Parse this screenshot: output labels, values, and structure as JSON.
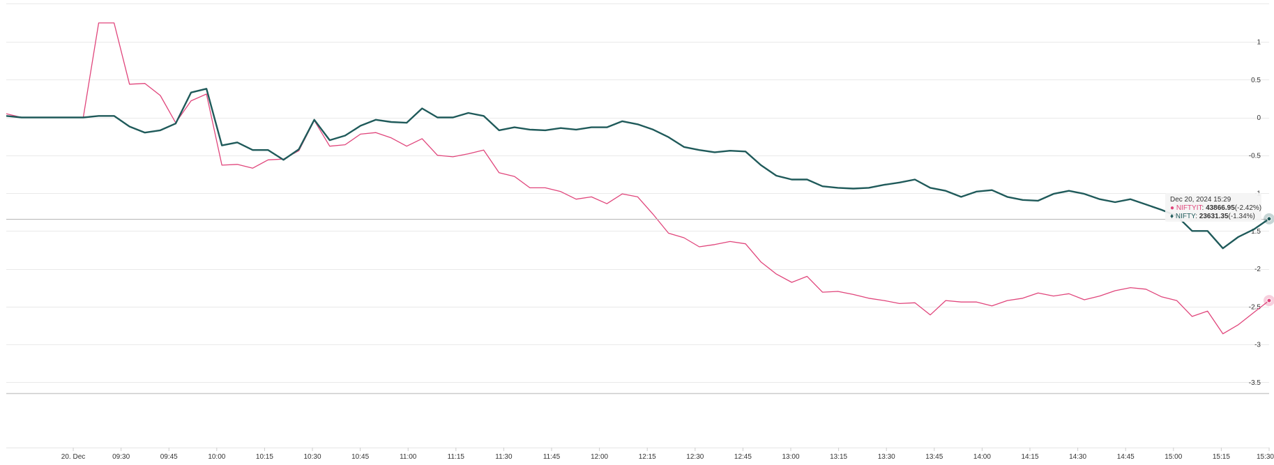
{
  "chart_data": {
    "type": "line",
    "ylim": [
      -3.8,
      1.5
    ],
    "y_ticks": [
      "1",
      "0.5",
      "0",
      "-0.5",
      "-1",
      "-1.5",
      "-2",
      "-2.5",
      "-3",
      "-3.5"
    ],
    "y_tick_values": [
      1,
      0.5,
      0,
      -0.5,
      -1,
      -1.5,
      -2,
      -2.5,
      -3,
      -3.5
    ],
    "x_ticks": [
      "20. Dec",
      "09:30",
      "09:45",
      "10:00",
      "10:15",
      "10:30",
      "10:45",
      "11:00",
      "11:15",
      "11:30",
      "11:45",
      "12:00",
      "12:15",
      "12:30",
      "12:45",
      "13:00",
      "13:15",
      "13:30",
      "13:45",
      "14:00",
      "14:15",
      "14:30",
      "14:45",
      "15:00",
      "15:15",
      "15:30"
    ],
    "x_tick_minutes": [
      555,
      570,
      585,
      600,
      615,
      630,
      645,
      660,
      675,
      690,
      705,
      720,
      735,
      750,
      765,
      780,
      795,
      810,
      825,
      840,
      855,
      870,
      885,
      900,
      915,
      930
    ],
    "x_start_minutes": 534,
    "x_end_minutes": 930,
    "grid": true,
    "crosshair_value": -1.34,
    "series": [
      {
        "name": "NIFTYIT",
        "color": "#e0457b",
        "values": [
          0.05,
          0,
          0,
          0,
          0,
          0,
          1.25,
          1.25,
          0.44,
          0.45,
          0.29,
          -0.07,
          0.22,
          0.31,
          -0.63,
          -0.62,
          -0.67,
          -0.56,
          -0.55,
          -0.44,
          -0.04,
          -0.38,
          -0.36,
          -0.22,
          -0.2,
          -0.27,
          -0.38,
          -0.28,
          -0.5,
          -0.52,
          -0.48,
          -0.43,
          -0.73,
          -0.78,
          -0.93,
          -0.93,
          -0.98,
          -1.08,
          -1.05,
          -1.14,
          -1.01,
          -1.05,
          -1.28,
          -1.53,
          -1.59,
          -1.71,
          -1.68,
          -1.64,
          -1.67,
          -1.91,
          -2.07,
          -2.18,
          -2.1,
          -2.31,
          -2.3,
          -2.34,
          -2.39,
          -2.42,
          -2.46,
          -2.45,
          -2.61,
          -2.42,
          -2.44,
          -2.44,
          -2.49,
          -2.42,
          -2.39,
          -2.32,
          -2.36,
          -2.33,
          -2.41,
          -2.36,
          -2.29,
          -2.25,
          -2.27,
          -2.37,
          -2.42,
          -2.63,
          -2.56,
          -2.86,
          -2.74,
          -2.58,
          -2.42
        ]
      },
      {
        "name": "NIFTY",
        "color": "#1f5a5a",
        "values": [
          0.02,
          0,
          0,
          0,
          0,
          0,
          0.02,
          0.02,
          -0.12,
          -0.2,
          -0.17,
          -0.08,
          0.33,
          0.38,
          -0.37,
          -0.33,
          -0.43,
          -0.43,
          -0.56,
          -0.42,
          -0.03,
          -0.3,
          -0.24,
          -0.11,
          -0.03,
          -0.06,
          -0.07,
          0.12,
          0,
          0,
          0.06,
          0.02,
          -0.17,
          -0.13,
          -0.16,
          -0.17,
          -0.14,
          -0.16,
          -0.13,
          -0.13,
          -0.05,
          -0.09,
          -0.16,
          -0.26,
          -0.39,
          -0.43,
          -0.46,
          -0.44,
          -0.45,
          -0.63,
          -0.77,
          -0.82,
          -0.82,
          -0.91,
          -0.93,
          -0.94,
          -0.93,
          -0.89,
          -0.86,
          -0.82,
          -0.93,
          -0.97,
          -1.05,
          -0.98,
          -0.96,
          -1.05,
          -1.09,
          -1.1,
          -1.01,
          -0.97,
          -1.01,
          -1.08,
          -1.12,
          -1.08,
          -1.15,
          -1.22,
          -1.3,
          -1.5,
          -1.5,
          -1.73,
          -1.58,
          -1.48,
          -1.34
        ]
      }
    ],
    "tooltip": {
      "date": "Dec 20, 2024 15:29",
      "rows": [
        {
          "name": "NIFTYIT",
          "value": "43866.95",
          "change": "(-2.42%)",
          "color": "#e0457b"
        },
        {
          "name": "NIFTY",
          "value": "23631.35",
          "change": "(-1.34%)",
          "color": "#1f5a5a"
        }
      ]
    }
  }
}
